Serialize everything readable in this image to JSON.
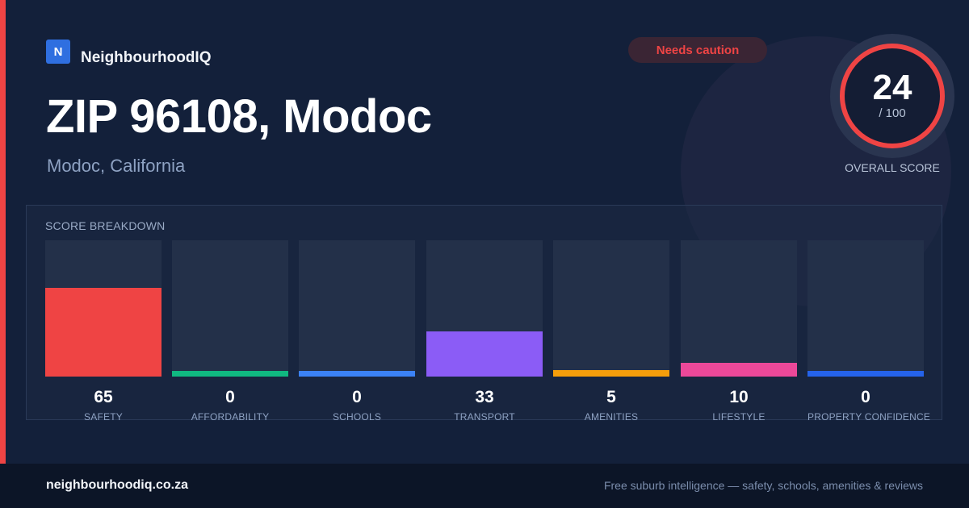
{
  "brand": {
    "logo_letter": "N",
    "name": "NeighbourhoodIQ"
  },
  "badge": {
    "label": "Needs caution",
    "color": "#ef4444"
  },
  "location": {
    "title": "ZIP 96108, Modoc",
    "subtitle": "Modoc, California"
  },
  "overall": {
    "score": "24",
    "max_label": "/ 100",
    "caption": "OVERALL SCORE",
    "fraction": 0.24,
    "ring_color": "#ef4444"
  },
  "breakdown": {
    "title": "SCORE BREAKDOWN",
    "categories": [
      {
        "label": "SAFETY",
        "value": "65",
        "fraction": 0.65,
        "color": "#ef4444"
      },
      {
        "label": "AFFORDABILITY",
        "value": "0",
        "fraction": 0,
        "color": "#10b981"
      },
      {
        "label": "SCHOOLS",
        "value": "0",
        "fraction": 0,
        "color": "#3b82f6"
      },
      {
        "label": "TRANSPORT",
        "value": "33",
        "fraction": 0.33,
        "color": "#8b5cf6"
      },
      {
        "label": "AMENITIES",
        "value": "5",
        "fraction": 0.05,
        "color": "#f59e0b"
      },
      {
        "label": "LIFESTYLE",
        "value": "10",
        "fraction": 0.1,
        "color": "#ec4899"
      },
      {
        "label": "PROPERTY CONFIDENCE",
        "value": "0",
        "fraction": 0,
        "color": "#2563eb"
      }
    ]
  },
  "footer": {
    "url": "neighbourhoodiq.co.za",
    "tagline": "Free suburb intelligence — safety, schools, amenities & reviews"
  }
}
